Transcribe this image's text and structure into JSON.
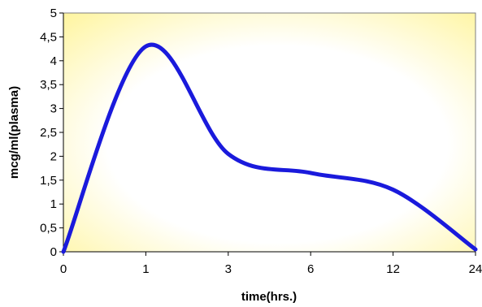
{
  "chart_data": {
    "type": "line",
    "title": "",
    "xlabel": "time(hrs.)",
    "ylabel": "mcg/ml(plasma)",
    "x_tick_labels": [
      "0",
      "1",
      "3",
      "6",
      "12",
      "24"
    ],
    "y_tick_labels": [
      "0",
      "0,5",
      "1",
      "1,5",
      "2",
      "2,5",
      "3",
      "3,5",
      "4",
      "4,5",
      "5"
    ],
    "ylim": [
      0,
      5
    ],
    "grid": false,
    "legend": "none",
    "series": [
      {
        "x": [
          "0",
          "1",
          "3",
          "6",
          "12",
          "24"
        ],
        "values": [
          0,
          4.3,
          2.05,
          1.65,
          1.3,
          0.05
        ],
        "color": "#1a1adc"
      }
    ],
    "colors": {
      "plot_gradient_corner": "#fff5a0",
      "plot_gradient_center": "#ffffff",
      "line": "#1a1adc"
    }
  }
}
